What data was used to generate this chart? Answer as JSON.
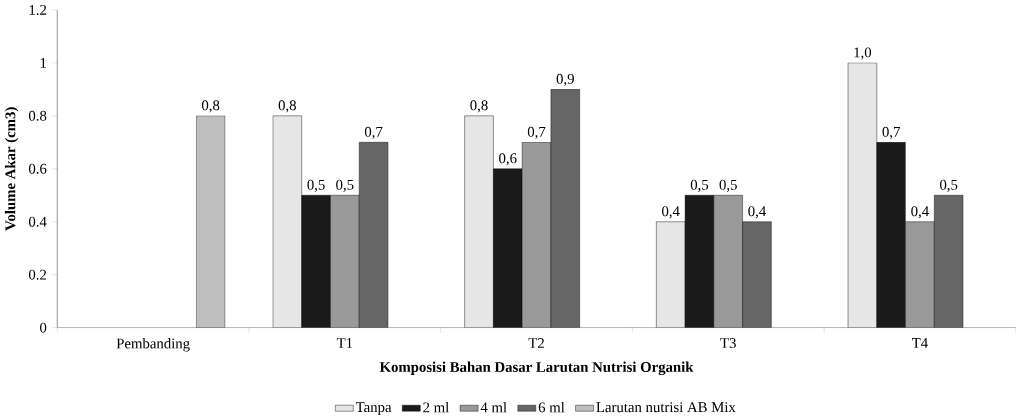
{
  "chart_data": {
    "type": "bar",
    "xlabel": "Komposisi Bahan Dasar Larutan Nutrisi Organik",
    "ylabel": "Volume Akar (cm3)",
    "categories": [
      "Pembanding",
      "T1",
      "T2",
      "T3",
      "T4"
    ],
    "series": [
      {
        "name": "Tanpa",
        "color": "#e6e6e6",
        "values": [
          null,
          0.8,
          0.8,
          0.4,
          1.0
        ],
        "value_labels": [
          null,
          "0,8",
          "0,8",
          "0,4",
          "1,0"
        ]
      },
      {
        "name": "2 ml",
        "color": "#1a1a1a",
        "values": [
          null,
          0.5,
          0.6,
          0.5,
          0.7
        ],
        "value_labels": [
          null,
          "0,5",
          "0,6",
          "0,5",
          "0,7"
        ]
      },
      {
        "name": "4 ml",
        "color": "#999999",
        "values": [
          null,
          0.5,
          0.7,
          0.5,
          0.4
        ],
        "value_labels": [
          null,
          "0,5",
          "0,7",
          "0,5",
          "0,4"
        ]
      },
      {
        "name": "6 ml",
        "color": "#666666",
        "values": [
          null,
          0.7,
          0.9,
          0.4,
          0.5
        ],
        "value_labels": [
          null,
          "0,7",
          "0,9",
          "0,4",
          "0,5"
        ]
      },
      {
        "name": "Larutan nutrisi AB Mix",
        "color": "#bfbfbf",
        "values": [
          0.8,
          null,
          null,
          null,
          null
        ],
        "value_labels": [
          "0,8",
          null,
          null,
          null,
          null
        ]
      }
    ],
    "ylim": [
      0,
      1.2
    ],
    "yticks": [
      0,
      0.2,
      0.4,
      0.6,
      0.8,
      1,
      1.2
    ],
    "grid": false,
    "legend": "bottom"
  }
}
